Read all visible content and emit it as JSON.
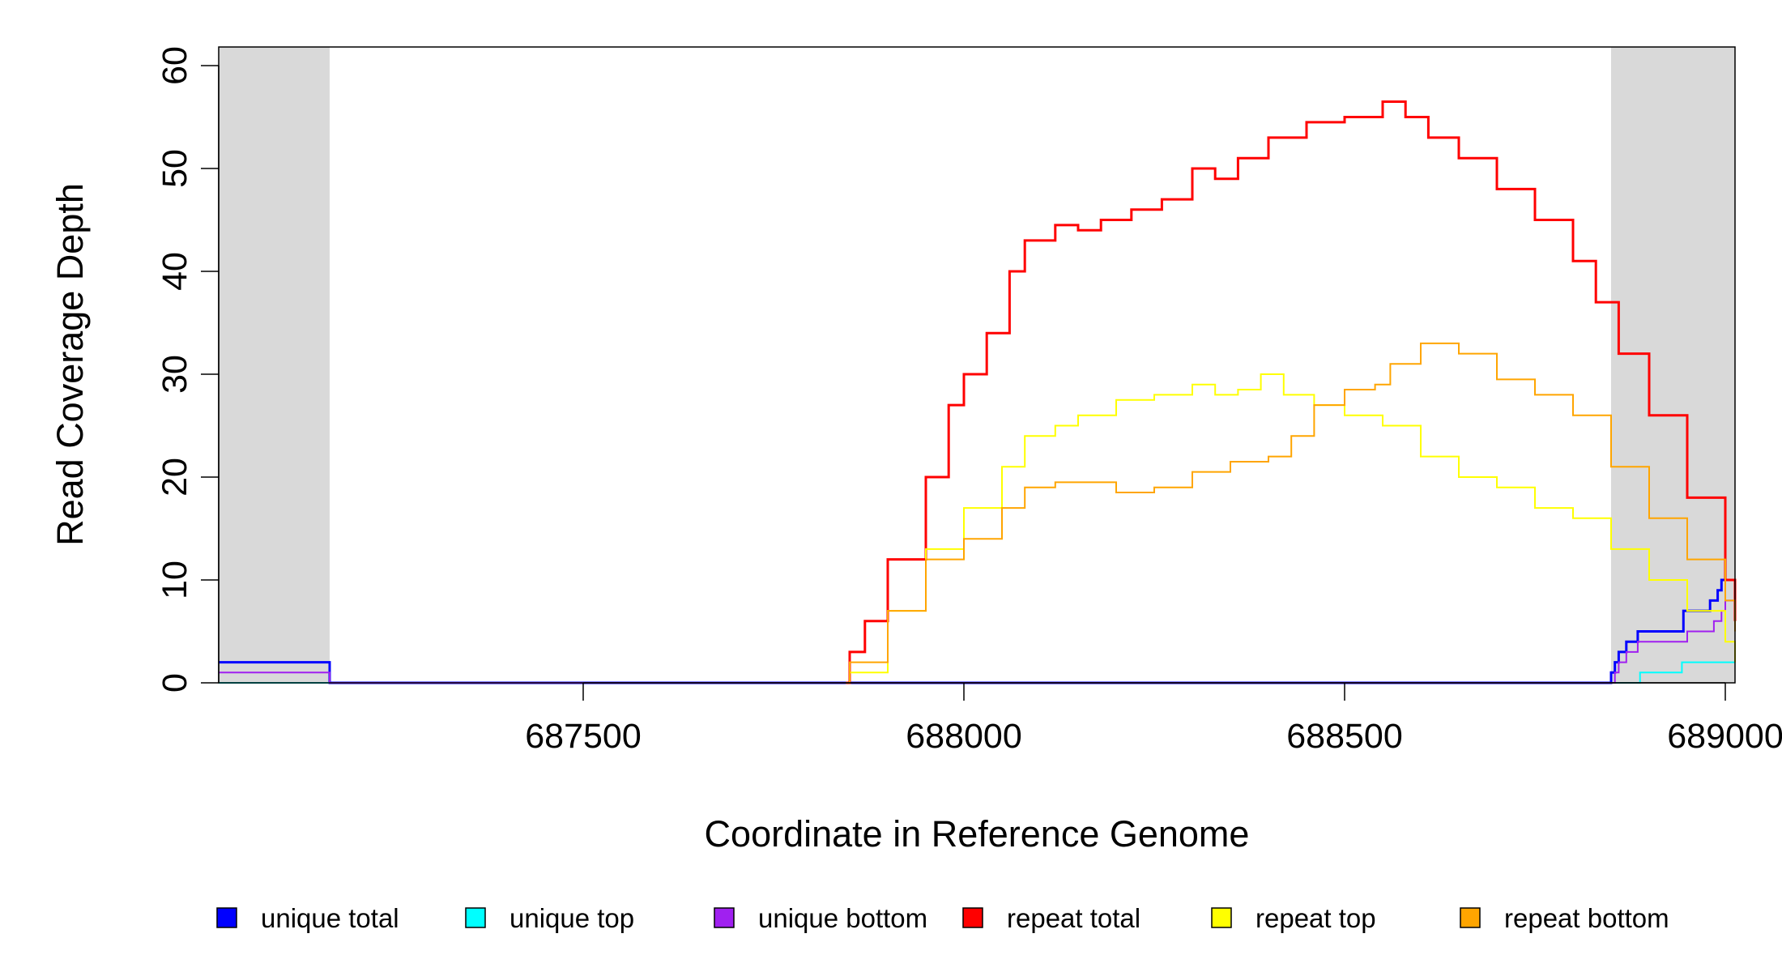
{
  "chart_data": {
    "type": "line",
    "xlabel": "Coordinate in Reference Genome",
    "ylabel": "Read Coverage Depth",
    "xlim": [
      687000,
      689020
    ],
    "ylim": [
      0,
      60
    ],
    "x_ticks": [
      {
        "value": 687500,
        "label": "687500"
      },
      {
        "value": 688000,
        "label": "688000"
      },
      {
        "value": 688500,
        "label": "688500"
      },
      {
        "value": 689000,
        "label": "689000"
      }
    ],
    "y_ticks": [
      {
        "value": 0,
        "label": "0"
      },
      {
        "value": 10,
        "label": "10"
      },
      {
        "value": 20,
        "label": "20"
      },
      {
        "value": 30,
        "label": "30"
      },
      {
        "value": 40,
        "label": "40"
      },
      {
        "value": 50,
        "label": "50"
      },
      {
        "value": 60,
        "label": "60"
      }
    ],
    "shaded_regions": [
      [
        687000,
        687167
      ],
      [
        688850,
        689020
      ]
    ],
    "shade_color": "#d9d9d9",
    "grid": false,
    "legend_position": "bottom",
    "series": [
      {
        "name": "unique total",
        "color": "#0000ff",
        "stroke_width": 3,
        "points": [
          [
            687000,
            2
          ],
          [
            687167,
            2
          ],
          [
            687167,
            0
          ],
          [
            688848,
            0
          ],
          [
            688850,
            1
          ],
          [
            688855,
            2
          ],
          [
            688860,
            3
          ],
          [
            688870,
            4
          ],
          [
            688885,
            5
          ],
          [
            688940,
            5
          ],
          [
            688945,
            7
          ],
          [
            688975,
            7
          ],
          [
            688980,
            8
          ],
          [
            688990,
            9
          ],
          [
            688995,
            10
          ],
          [
            689020,
            10
          ]
        ]
      },
      {
        "name": "unique top",
        "color": "#00ffff",
        "stroke_width": 2,
        "points": [
          [
            687000,
            0
          ],
          [
            688885,
            0
          ],
          [
            688888,
            1
          ],
          [
            688940,
            1
          ],
          [
            688943,
            2
          ],
          [
            689020,
            2
          ]
        ]
      },
      {
        "name": "unique bottom",
        "color": "#a020f0",
        "stroke_width": 2,
        "points": [
          [
            687000,
            1
          ],
          [
            687167,
            1
          ],
          [
            687167,
            0
          ],
          [
            688850,
            0
          ],
          [
            688855,
            1
          ],
          [
            688860,
            2
          ],
          [
            688870,
            3
          ],
          [
            688885,
            4
          ],
          [
            688945,
            4
          ],
          [
            688950,
            5
          ],
          [
            688980,
            5
          ],
          [
            688985,
            6
          ],
          [
            688995,
            7
          ],
          [
            689000,
            8
          ],
          [
            689020,
            8
          ]
        ]
      },
      {
        "name": "repeat total",
        "color": "#ff0000",
        "stroke_width": 3,
        "points": [
          [
            687845,
            0
          ],
          [
            687850,
            3
          ],
          [
            687870,
            6
          ],
          [
            687900,
            12
          ],
          [
            687950,
            20
          ],
          [
            687980,
            27
          ],
          [
            688000,
            30
          ],
          [
            688030,
            34
          ],
          [
            688060,
            40
          ],
          [
            688080,
            43
          ],
          [
            688100,
            43
          ],
          [
            688120,
            44.5
          ],
          [
            688150,
            44
          ],
          [
            688180,
            45
          ],
          [
            688220,
            46
          ],
          [
            688260,
            47
          ],
          [
            688300,
            50
          ],
          [
            688330,
            49
          ],
          [
            688360,
            51
          ],
          [
            688400,
            53
          ],
          [
            688450,
            54.5
          ],
          [
            688500,
            55
          ],
          [
            688530,
            55
          ],
          [
            688550,
            56.5
          ],
          [
            688580,
            55
          ],
          [
            688610,
            53
          ],
          [
            688650,
            51
          ],
          [
            688700,
            48
          ],
          [
            688750,
            45
          ],
          [
            688800,
            41
          ],
          [
            688830,
            37
          ],
          [
            688860,
            32
          ],
          [
            688900,
            26
          ],
          [
            688950,
            18
          ],
          [
            689000,
            10
          ],
          [
            689020,
            6
          ]
        ]
      },
      {
        "name": "repeat top",
        "color": "#ffff00",
        "stroke_width": 2,
        "points": [
          [
            687845,
            0
          ],
          [
            687850,
            1
          ],
          [
            687900,
            7
          ],
          [
            687950,
            13
          ],
          [
            688000,
            17
          ],
          [
            688050,
            21
          ],
          [
            688080,
            24
          ],
          [
            688120,
            25
          ],
          [
            688150,
            26
          ],
          [
            688200,
            27.5
          ],
          [
            688250,
            28
          ],
          [
            688300,
            29
          ],
          [
            688330,
            28
          ],
          [
            688360,
            28.5
          ],
          [
            688390,
            30
          ],
          [
            688420,
            28
          ],
          [
            688460,
            27
          ],
          [
            688500,
            26
          ],
          [
            688550,
            25
          ],
          [
            688600,
            22
          ],
          [
            688650,
            20
          ],
          [
            688700,
            19
          ],
          [
            688750,
            17
          ],
          [
            688800,
            16
          ],
          [
            688850,
            13
          ],
          [
            688900,
            10
          ],
          [
            688950,
            7
          ],
          [
            689000,
            4
          ],
          [
            689020,
            2
          ]
        ]
      },
      {
        "name": "repeat bottom",
        "color": "#ffa500",
        "stroke_width": 2,
        "points": [
          [
            687845,
            0
          ],
          [
            687850,
            2
          ],
          [
            687900,
            7
          ],
          [
            687950,
            12
          ],
          [
            688000,
            14
          ],
          [
            688050,
            17
          ],
          [
            688080,
            19
          ],
          [
            688120,
            19.5
          ],
          [
            688150,
            19.5
          ],
          [
            688200,
            18.5
          ],
          [
            688250,
            19
          ],
          [
            688300,
            20.5
          ],
          [
            688350,
            21.5
          ],
          [
            688400,
            22
          ],
          [
            688430,
            24
          ],
          [
            688460,
            27
          ],
          [
            688500,
            28.5
          ],
          [
            688540,
            29
          ],
          [
            688560,
            31
          ],
          [
            688600,
            33
          ],
          [
            688650,
            32
          ],
          [
            688700,
            29.5
          ],
          [
            688750,
            28
          ],
          [
            688800,
            26
          ],
          [
            688850,
            21
          ],
          [
            688900,
            16
          ],
          [
            688950,
            12
          ],
          [
            689000,
            8
          ],
          [
            689020,
            5
          ]
        ]
      }
    ]
  }
}
